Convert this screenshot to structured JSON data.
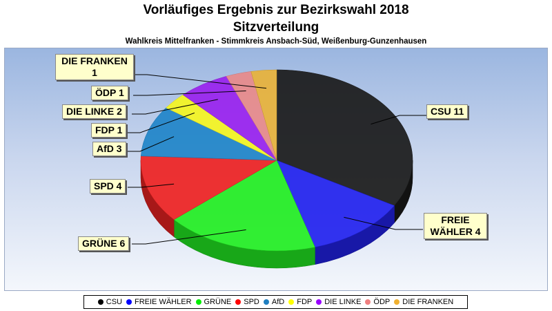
{
  "header": {
    "title": "Vorläufiges Ergebnis zur Bezirkswahl 2018",
    "subtitle": "Sitzverteilung",
    "caption": "Wahlkreis Mittelfranken - Stimmkreis Ansbach-Süd, Weißenburg-Gunzenhausen"
  },
  "chart_data": {
    "type": "pie",
    "title": "Vorläufiges Ergebnis zur Bezirkswahl 2018",
    "subtitle": "Sitzverteilung",
    "categories": [
      "CSU",
      "FREIE WÄHLER",
      "GRÜNE",
      "SPD",
      "AfD",
      "FDP",
      "DIE LINKE",
      "ÖDP",
      "DIE FRANKEN"
    ],
    "values": [
      11,
      4,
      6,
      4,
      3,
      1,
      2,
      1,
      1
    ],
    "colors": [
      "#1a1a1a",
      "#2222ee",
      "#22ee22",
      "#ee2222",
      "#1f84c8",
      "#f5f51f",
      "#9922ee",
      "#e88a8a",
      "#e8b23a"
    ],
    "labels": [
      "CSU 11",
      "FREIE WÄHLER 4",
      "GRÜNE 6",
      "SPD 4",
      "AfD 3",
      "FDP 1",
      "DIE LINKE 2",
      "ÖDP 1",
      "DIE FRANKEN 1"
    ],
    "legend_position": "bottom"
  },
  "callouts": {
    "csu": "CSU 11",
    "fw": "FREIE\nWÄHLER 4",
    "gruene": "GRÜNE 6",
    "spd": "SPD 4",
    "afd": "AfD 3",
    "fdp": "FDP 1",
    "linke": "DIE LINKE 2",
    "oedp": "ÖDP 1",
    "franken": "DIE FRANKEN\n1"
  },
  "legend": [
    {
      "label": "CSU",
      "color": "#000000"
    },
    {
      "label": "FREIE WÄHLER",
      "color": "#0000ff"
    },
    {
      "label": "GRÜNE",
      "color": "#00ee00"
    },
    {
      "label": "SPD",
      "color": "#ff0000"
    },
    {
      "label": "AfD",
      "color": "#1f7fc0"
    },
    {
      "label": "FDP",
      "color": "#ffff00"
    },
    {
      "label": "DIE LINKE",
      "color": "#9900ff"
    },
    {
      "label": "ÖDP",
      "color": "#f08080"
    },
    {
      "label": "DIE FRANKEN",
      "color": "#f0b030"
    }
  ]
}
